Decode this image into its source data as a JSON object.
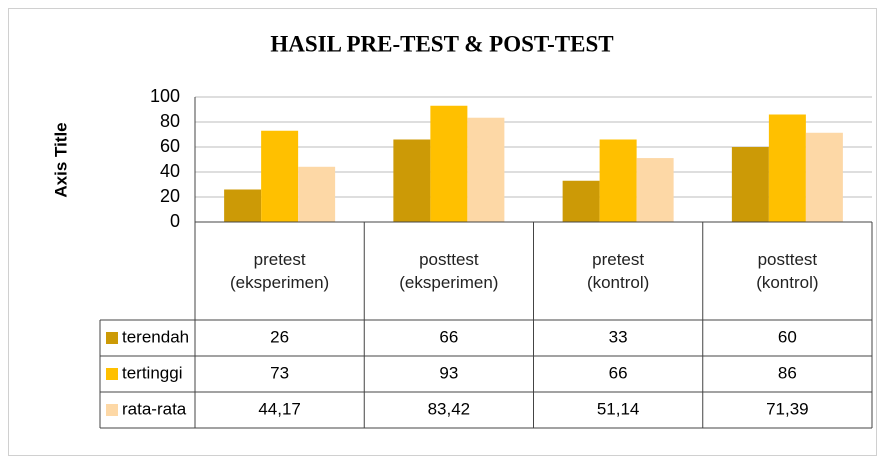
{
  "chart_data": {
    "type": "bar",
    "title": "HASIL PRE-TEST & POST-TEST",
    "y_label": "Axis Title",
    "categories": [
      "pretest (eksperimen)",
      "posttest (eksperimen)",
      "pretest (kontrol)",
      "posttest (kontrol)"
    ],
    "series": [
      {
        "name": "terendah",
        "color": "#cc9a06",
        "values": [
          26,
          66,
          33,
          60
        ]
      },
      {
        "name": "tertinggi",
        "color": "#ffc000",
        "values": [
          73,
          93,
          66,
          86
        ]
      },
      {
        "name": "rata-rata",
        "color": "#fdd8a6",
        "values": [
          44.17,
          83.42,
          51.14,
          71.39
        ],
        "value_labels": [
          "44,17",
          "83,42",
          "51,14",
          "71,39"
        ]
      }
    ],
    "ylim": [
      0,
      100
    ],
    "yticks": [
      0,
      20,
      40,
      60,
      80,
      100
    ],
    "grid": true,
    "data_table": true
  }
}
